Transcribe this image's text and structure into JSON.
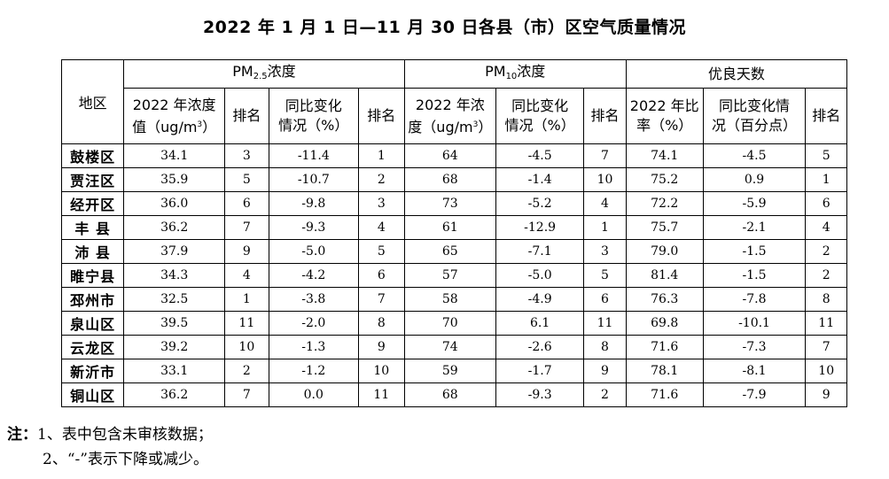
{
  "title": "2022 年 1 月 1 日—11 月 30 日各县（市）区空气质量情况",
  "header": {
    "area": "地区",
    "pm25": {
      "prefix": "PM",
      "sub": "2.5",
      "suffix": "浓度"
    },
    "pm10": {
      "prefix": "PM",
      "sub": "10",
      "suffix": "浓度"
    },
    "good_days": "优良天数",
    "pm25_conc_a": "2022 年浓度",
    "pm25_conc_b": "值（ug/m",
    "pm25_conc_sup": "3",
    "pm25_conc_c": "）",
    "rank": "排名",
    "yoy_a": "同比变化",
    "yoy_b": "情况（%）",
    "pm10_conc_a": "2022 年浓",
    "pm10_conc_b": "度（ug/m",
    "pm10_conc_sup": "3",
    "pm10_conc_c": "）",
    "good_ratio_a": "2022 年比",
    "good_ratio_b": "率（%）",
    "good_yoy_a": "同比变化情",
    "good_yoy_b": "况（百分点）"
  },
  "rows": [
    {
      "area": "鼓楼区",
      "pm25": "34.1",
      "pm25_rank": "3",
      "pm25_yoy": "-11.4",
      "pm25_yoy_rank": "1",
      "pm10": "64",
      "pm10_yoy": "-4.5",
      "pm10_rank": "7",
      "good": "74.1",
      "good_yoy": "-4.5",
      "good_rank": "5"
    },
    {
      "area": "贾汪区",
      "pm25": "35.9",
      "pm25_rank": "5",
      "pm25_yoy": "-10.7",
      "pm25_yoy_rank": "2",
      "pm10": "68",
      "pm10_yoy": "-1.4",
      "pm10_rank": "10",
      "good": "75.2",
      "good_yoy": "0.9",
      "good_rank": "1"
    },
    {
      "area": "经开区",
      "pm25": "36.0",
      "pm25_rank": "6",
      "pm25_yoy": "-9.8",
      "pm25_yoy_rank": "3",
      "pm10": "73",
      "pm10_yoy": "-5.2",
      "pm10_rank": "4",
      "good": "72.2",
      "good_yoy": "-5.9",
      "good_rank": "6"
    },
    {
      "area": "丰 县",
      "pm25": "36.2",
      "pm25_rank": "7",
      "pm25_yoy": "-9.3",
      "pm25_yoy_rank": "4",
      "pm10": "61",
      "pm10_yoy": "-12.9",
      "pm10_rank": "1",
      "good": "75.7",
      "good_yoy": "-2.1",
      "good_rank": "4"
    },
    {
      "area": "沛 县",
      "pm25": "37.9",
      "pm25_rank": "9",
      "pm25_yoy": "-5.0",
      "pm25_yoy_rank": "5",
      "pm10": "65",
      "pm10_yoy": "-7.1",
      "pm10_rank": "3",
      "good": "79.0",
      "good_yoy": "-1.5",
      "good_rank": "2"
    },
    {
      "area": "睢宁县",
      "pm25": "34.3",
      "pm25_rank": "4",
      "pm25_yoy": "-4.2",
      "pm25_yoy_rank": "6",
      "pm10": "57",
      "pm10_yoy": "-5.0",
      "pm10_rank": "5",
      "good": "81.4",
      "good_yoy": "-1.5",
      "good_rank": "2"
    },
    {
      "area": "邳州市",
      "pm25": "32.5",
      "pm25_rank": "1",
      "pm25_yoy": "-3.8",
      "pm25_yoy_rank": "7",
      "pm10": "58",
      "pm10_yoy": "-4.9",
      "pm10_rank": "6",
      "good": "76.3",
      "good_yoy": "-7.8",
      "good_rank": "8"
    },
    {
      "area": "泉山区",
      "pm25": "39.5",
      "pm25_rank": "11",
      "pm25_yoy": "-2.0",
      "pm25_yoy_rank": "8",
      "pm10": "70",
      "pm10_yoy": "6.1",
      "pm10_rank": "11",
      "good": "69.8",
      "good_yoy": "-10.1",
      "good_rank": "11"
    },
    {
      "area": "云龙区",
      "pm25": "39.2",
      "pm25_rank": "10",
      "pm25_yoy": "-1.3",
      "pm25_yoy_rank": "9",
      "pm10": "74",
      "pm10_yoy": "-2.6",
      "pm10_rank": "8",
      "good": "71.6",
      "good_yoy": "-7.3",
      "good_rank": "7"
    },
    {
      "area": "新沂市",
      "pm25": "33.1",
      "pm25_rank": "2",
      "pm25_yoy": "-1.2",
      "pm25_yoy_rank": "10",
      "pm10": "59",
      "pm10_yoy": "-1.7",
      "pm10_rank": "9",
      "good": "78.1",
      "good_yoy": "-8.1",
      "good_rank": "10"
    },
    {
      "area": "铜山区",
      "pm25": "36.2",
      "pm25_rank": "7",
      "pm25_yoy": "0.0",
      "pm25_yoy_rank": "11",
      "pm10": "68",
      "pm10_yoy": "-9.3",
      "pm10_rank": "2",
      "good": "71.6",
      "good_yoy": "-7.9",
      "good_rank": "9"
    }
  ],
  "notes": {
    "label": "注：",
    "line1": "1、表中包含未审核数据；",
    "line2": "2、“-”表示下降或减少。"
  }
}
